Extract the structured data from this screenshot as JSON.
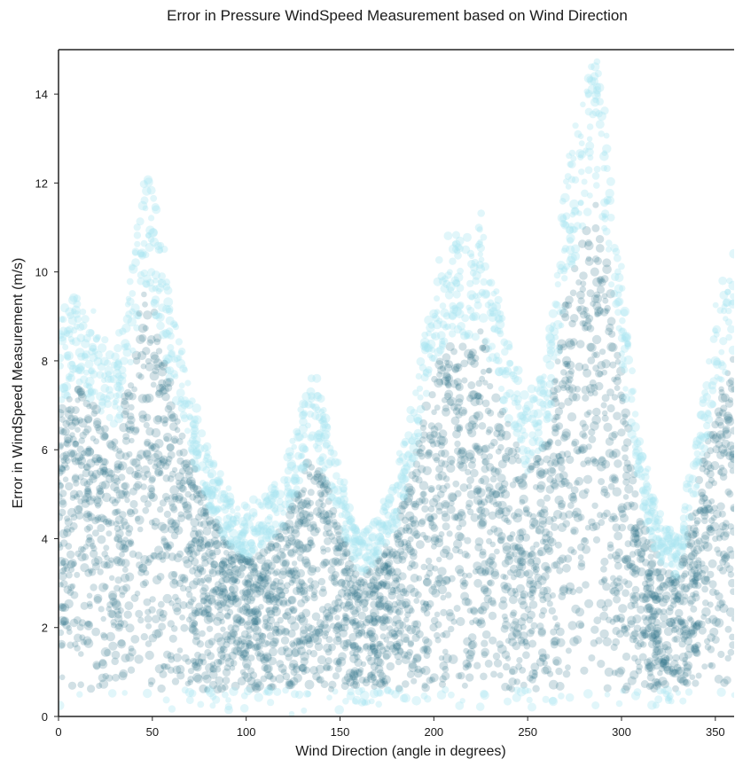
{
  "chart_data": {
    "type": "scatter",
    "title": "Error in Pressure WindSpeed Measurement based on Wind Direction",
    "xlabel": "Wind Direction (angle in degrees)",
    "ylabel": "Error in WindSpeed Measurement (m/s)",
    "xlim": [
      0,
      360
    ],
    "ylim": [
      0,
      15
    ],
    "xticks": [
      0,
      50,
      100,
      150,
      200,
      250,
      300,
      350
    ],
    "yticks": [
      0,
      2,
      4,
      6,
      8,
      10,
      12,
      14
    ],
    "grid": false,
    "legend": "none",
    "colors": {
      "dense": "#2f7488",
      "sparse": "#a8e4f2"
    },
    "envelope": {
      "description_of_points": "dense cloud of semi-transparent points; upper edge of cloud by wind direction",
      "direction": [
        0,
        10,
        20,
        30,
        40,
        45,
        50,
        60,
        70,
        80,
        90,
        100,
        110,
        120,
        130,
        135,
        140,
        150,
        160,
        170,
        180,
        190,
        200,
        210,
        220,
        225,
        230,
        240,
        250,
        260,
        270,
        280,
        285,
        290,
        300,
        310,
        320,
        330,
        340,
        350,
        360
      ],
      "max_error": [
        9.0,
        9.5,
        9.0,
        8.0,
        10.5,
        12.5,
        12.0,
        9.5,
        7.5,
        6.0,
        5.0,
        4.5,
        5.0,
        5.5,
        7.0,
        7.8,
        7.2,
        5.5,
        4.0,
        4.5,
        5.5,
        7.5,
        10.0,
        11.0,
        10.5,
        11.5,
        10.0,
        8.5,
        7.0,
        8.0,
        12.0,
        14.0,
        15.0,
        14.0,
        10.0,
        6.0,
        4.5,
        4.0,
        6.5,
        9.0,
        10.5
      ]
    }
  },
  "texts": {
    "title": "Error in Pressure WindSpeed Measurement based on Wind Direction",
    "xlabel": "Wind Direction (angle in degrees)",
    "ylabel": "Error in WindSpeed Measurement (m/s)"
  }
}
